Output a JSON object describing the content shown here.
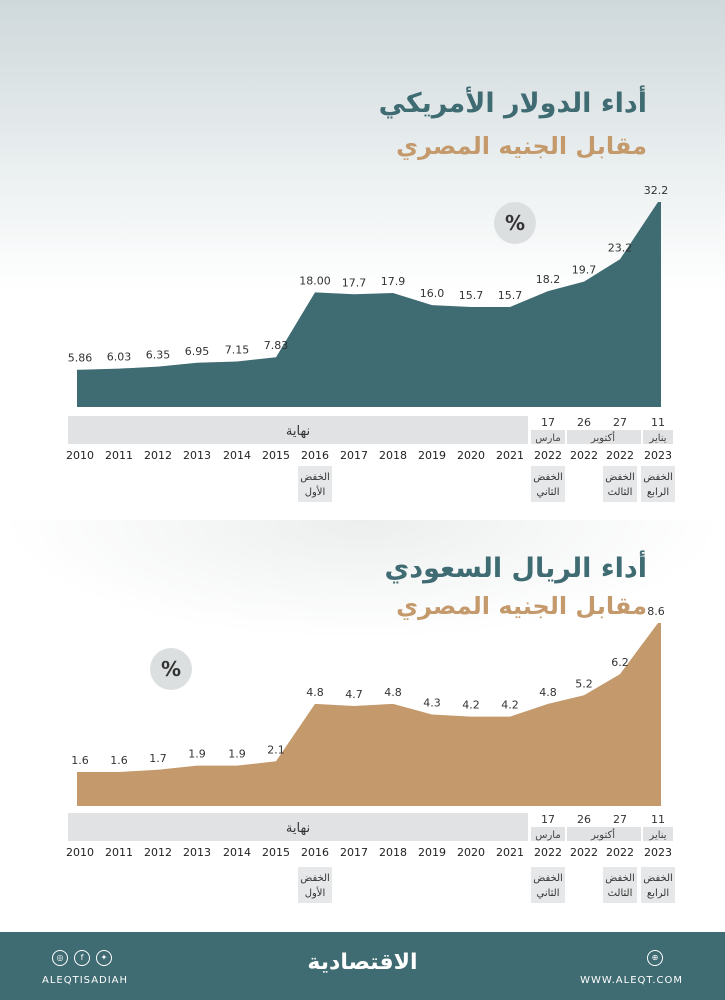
{
  "chart_data": [
    {
      "type": "area",
      "title": "أداء الدولار الأمريكي",
      "subtitle": "مقابل الجنيه المصري",
      "unit_badge": "%",
      "color": "#3f6b72",
      "ylim": [
        0,
        32.2
      ],
      "x": [
        "2010",
        "2011",
        "2012",
        "2013",
        "2014",
        "2015",
        "2016",
        "2017",
        "2018",
        "2019",
        "2020",
        "2021",
        "2022",
        "2022",
        "2022",
        "2023"
      ],
      "values": [
        5.86,
        6.03,
        6.35,
        6.95,
        7.15,
        7.83,
        18.0,
        17.7,
        17.9,
        16.0,
        15.7,
        15.7,
        18.2,
        19.7,
        23.2,
        32.2
      ],
      "value_labels": [
        "5.86",
        "6.03",
        "6.35",
        "6.95",
        "7.15",
        "7.83",
        "18.00",
        "17.7",
        "17.9",
        "16.0",
        "15.7",
        "15.7",
        "18.2",
        "19.7",
        "23.2",
        "32.2"
      ]
    },
    {
      "type": "area",
      "title": "أداء الريال السعودي",
      "subtitle": "مقابل الجنيه المصري",
      "unit_badge": "%",
      "color": "#c49a6c",
      "ylim": [
        0,
        8.6
      ],
      "x": [
        "2010",
        "2011",
        "2012",
        "2013",
        "2014",
        "2015",
        "2016",
        "2017",
        "2018",
        "2019",
        "2020",
        "2021",
        "2022",
        "2022",
        "2022",
        "2023"
      ],
      "values": [
        1.6,
        1.6,
        1.7,
        1.9,
        1.9,
        2.1,
        4.8,
        4.7,
        4.8,
        4.3,
        4.2,
        4.2,
        4.8,
        5.2,
        6.2,
        8.6
      ],
      "value_labels": [
        "1.6",
        "1.6",
        "1.7",
        "1.9",
        "1.9",
        "2.1",
        "4.8",
        "4.7",
        "4.8",
        "4.3",
        "4.2",
        "4.2",
        "4.8",
        "5.2",
        "6.2",
        "8.6"
      ]
    }
  ],
  "period_bar": {
    "end_label": "نهاية",
    "dates": [
      {
        "day": "17",
        "month": "مارس"
      },
      {
        "day": "26",
        "month": "أكتوبر"
      },
      {
        "day": "27",
        "month": ""
      },
      {
        "day": "11",
        "month": "يناير"
      }
    ]
  },
  "devaluations": [
    {
      "index": 6,
      "line1": "الخفض",
      "line2": "الأول"
    },
    {
      "index": 12,
      "line1": "الخفض",
      "line2": "الثاني"
    },
    {
      "index": 14,
      "line1": "الخفض",
      "line2": "الثالث"
    },
    {
      "index": 15,
      "line1": "الخفض",
      "line2": "الرابع"
    }
  ],
  "footer": {
    "brand": "الاقتصادية",
    "handle": "ALEQTISADIAH",
    "website": "WWW.ALEQT.COM"
  }
}
